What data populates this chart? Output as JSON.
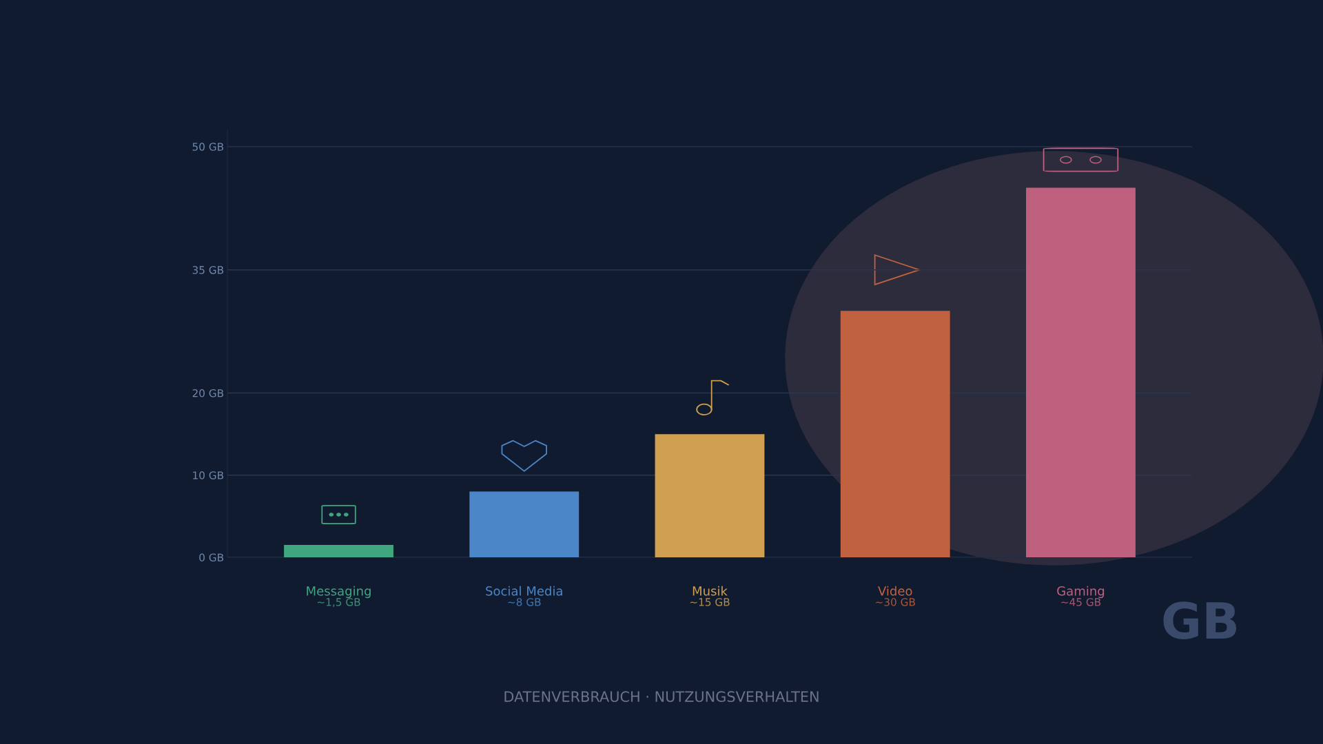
{
  "chart_data": {
    "type": "bar",
    "title": "DATENVERBRAUCH · NUTZUNGSVERHALTEN",
    "categories": [
      "Messaging",
      "Social Media",
      "Musik",
      "Video",
      "Gaming"
    ],
    "values": [
      1.5,
      8,
      15,
      30,
      45
    ],
    "colors": [
      "#3fa67f",
      "#4a86c8",
      "#d0a050",
      "#c0623f",
      "#c0607f"
    ],
    "value_labels": [
      "~1,5 GB",
      "~8 GB",
      "~15 GB",
      "~30 GB",
      "~45 GB"
    ],
    "ylim": [
      0,
      52
    ],
    "yticks": [
      {
        "value": 0,
        "label": "0 GB"
      },
      {
        "value": 10,
        "label": "10 GB"
      },
      {
        "value": 20,
        "label": "20 GB"
      },
      {
        "value": 35,
        "label": "35 GB"
      },
      {
        "value": 50,
        "label": "50 GB"
      }
    ],
    "grid": "y",
    "annotations": [
      "GB"
    ]
  }
}
